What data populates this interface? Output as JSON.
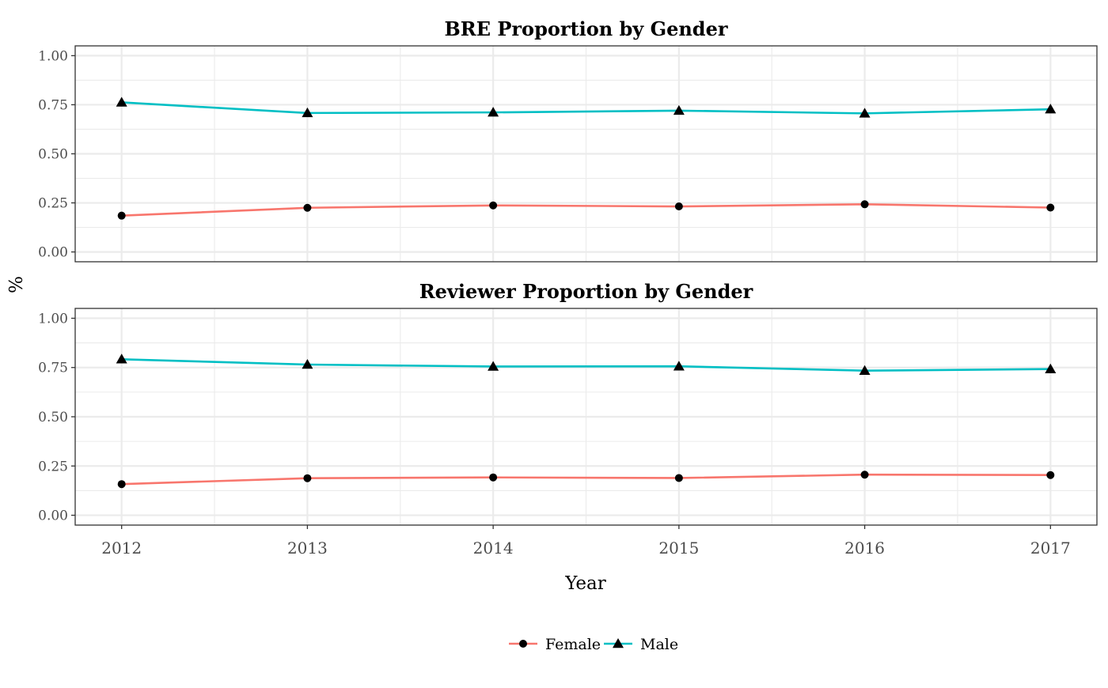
{
  "chart_data": [
    {
      "type": "line",
      "title": "BRE Proportion by Gender",
      "x": [
        2012,
        2013,
        2014,
        2015,
        2016,
        2017
      ],
      "ylim": [
        0,
        1
      ],
      "yticks": [
        "0.00",
        "0.25",
        "0.50",
        "0.75",
        "1.00"
      ],
      "series": [
        {
          "name": "Female",
          "color": "#F8766D",
          "marker": "circle",
          "values": [
            0.185,
            0.225,
            0.237,
            0.232,
            0.243,
            0.226
          ]
        },
        {
          "name": "Male",
          "color": "#00BFC4",
          "marker": "triangle",
          "values": [
            0.762,
            0.708,
            0.711,
            0.72,
            0.706,
            0.727
          ]
        }
      ]
    },
    {
      "type": "line",
      "title": "Reviewer Proportion by Gender",
      "x": [
        2012,
        2013,
        2014,
        2015,
        2016,
        2017
      ],
      "ylim": [
        0,
        1
      ],
      "yticks": [
        "0.00",
        "0.25",
        "0.50",
        "0.75",
        "1.00"
      ],
      "series": [
        {
          "name": "Female",
          "color": "#F8766D",
          "marker": "circle",
          "values": [
            0.158,
            0.188,
            0.192,
            0.189,
            0.206,
            0.204
          ]
        },
        {
          "name": "Male",
          "color": "#00BFC4",
          "marker": "triangle",
          "values": [
            0.792,
            0.765,
            0.755,
            0.756,
            0.734,
            0.742
          ]
        }
      ]
    }
  ],
  "xlabel": "Year",
  "ylabel": "%",
  "xticks": [
    "2012",
    "2013",
    "2014",
    "2015",
    "2016",
    "2017"
  ],
  "legend": {
    "position": "bottom",
    "items": [
      {
        "label": "Female",
        "color": "#F8766D",
        "marker": "circle"
      },
      {
        "label": "Male",
        "color": "#00BFC4",
        "marker": "triangle"
      }
    ]
  }
}
